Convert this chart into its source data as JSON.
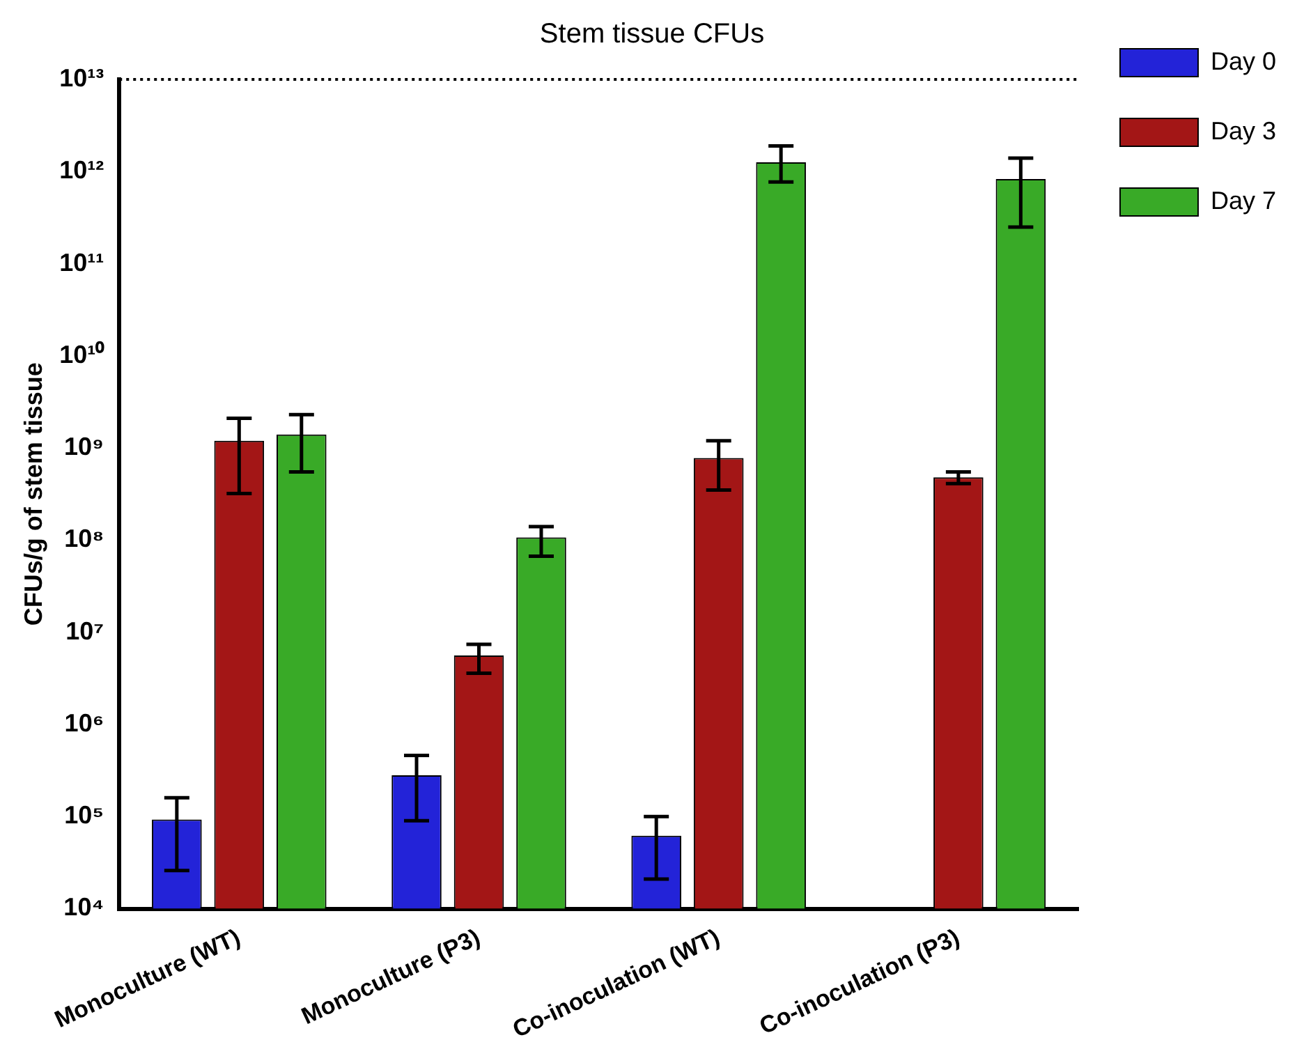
{
  "chart_data": {
    "type": "bar",
    "title": "Stem tissue CFUs",
    "ylabel": "CFUs/g of stem tissue",
    "categories": [
      "Monoculture (WT)",
      "Monoculture (P3)",
      "Co-inoculation (WT)",
      "Co-inoculation (P3)"
    ],
    "series": [
      {
        "name": "Day 0",
        "color": "#2323d8",
        "values": [
          93000,
          280000,
          62000,
          null
        ],
        "errors": [
          [
            26000,
            160000
          ],
          [
            90000,
            460000
          ],
          [
            21000,
            100000
          ],
          null
        ]
      },
      {
        "name": "Day 3",
        "color": "#a31616",
        "values": [
          1200000000,
          5600000,
          780000000,
          480000000
        ],
        "errors": [
          [
            320000000,
            2100000000
          ],
          [
            3600000,
            7400000
          ],
          [
            350000000,
            1200000000
          ],
          [
            410000000,
            550000000
          ]
        ]
      },
      {
        "name": "Day 7",
        "color": "#39aa27",
        "values": [
          1400000000,
          107000000,
          1260000000000,
          830000000000
        ],
        "errors": [
          [
            550000000,
            2300000000
          ],
          [
            67000000,
            140000000
          ],
          [
            770000000000,
            1900000000000
          ],
          [
            250000000000,
            1400000000000
          ]
        ]
      }
    ],
    "log": true,
    "ylim": [
      10000,
      10000000000000
    ],
    "yticks": [
      {
        "value": 10000,
        "label": "10⁴"
      },
      {
        "value": 100000,
        "label": "10⁵"
      },
      {
        "value": 1000000,
        "label": "10⁶"
      },
      {
        "value": 10000000,
        "label": "10⁷"
      },
      {
        "value": 100000000,
        "label": "10⁸"
      },
      {
        "value": 1000000000,
        "label": "10⁹"
      },
      {
        "value": 10000000000,
        "label": "10¹⁰"
      },
      {
        "value": 100000000000,
        "label": "10¹¹"
      },
      {
        "value": 1000000000000,
        "label": "10¹²"
      },
      {
        "value": 10000000000000,
        "label": "10¹³"
      }
    ],
    "ref_lines": [
      {
        "axis": "y",
        "value": 10000000000000,
        "line_style": "dotted",
        "color": "#000000"
      }
    ],
    "grid": false,
    "legend": "right"
  }
}
